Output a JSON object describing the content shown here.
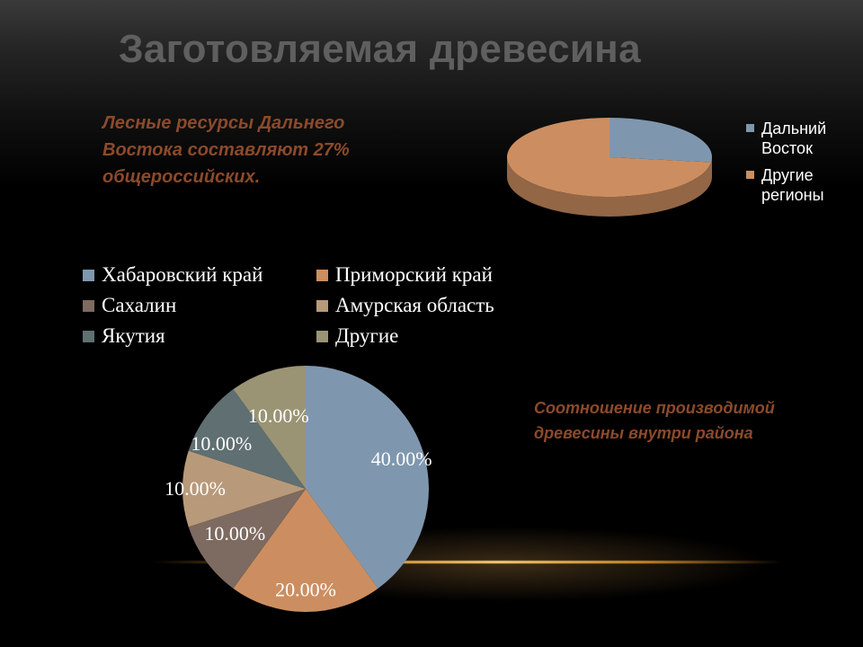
{
  "slide": {
    "title": "Заготовляемая древесина",
    "caption_top": "Лесные ресурсы Дальнего Востока составляют 27% общероссийских.",
    "caption_bottom": "Соотношение производимой древесины внутри района"
  },
  "chart_data": [
    {
      "type": "pie",
      "style": "3d",
      "legend_position": "right",
      "categories": [
        "Дальний Восток",
        "Другие регионы"
      ],
      "values": [
        27,
        73
      ],
      "colors": [
        "#7f97ae",
        "#cc8e60"
      ],
      "data_labels": []
    },
    {
      "type": "pie",
      "legend_position": "top",
      "categories": [
        "Хабаровский край",
        "Приморский край",
        "Сахалин",
        "Амурская область",
        "Якутия",
        "Другие"
      ],
      "values": [
        40,
        20,
        10,
        10,
        10,
        10
      ],
      "colors": [
        "#7f97ae",
        "#cc8e60",
        "#7d6a60",
        "#b89a7a",
        "#5f6f72",
        "#9a9475"
      ],
      "data_labels": [
        "40.00%",
        "20.00%",
        "10.00%",
        "10.00%",
        "10.00%",
        "10.00%"
      ]
    }
  ]
}
